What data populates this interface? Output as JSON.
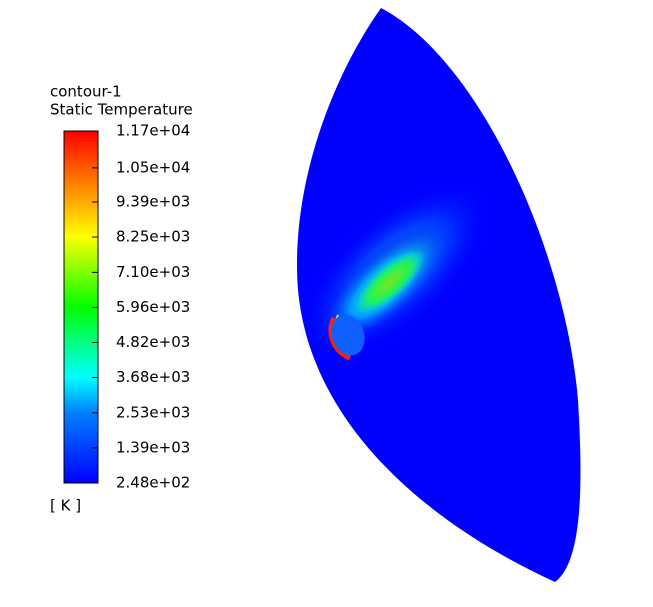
{
  "chart_data": {
    "type": "contour",
    "title": "contour-1",
    "subtitle": "Static Temperature",
    "unit": "[ K ]",
    "clim": [
      248,
      11700
    ],
    "cticks": [
      {
        "value": 248,
        "label": "2.48e+02"
      },
      {
        "value": 1390,
        "label": "1.39e+03"
      },
      {
        "value": 2530,
        "label": "2.53e+03"
      },
      {
        "value": 3680,
        "label": "3.68e+03"
      },
      {
        "value": 4820,
        "label": "4.82e+03"
      },
      {
        "value": 5960,
        "label": "5.96e+03"
      },
      {
        "value": 7100,
        "label": "7.10e+03"
      },
      {
        "value": 8250,
        "label": "8.25e+03"
      },
      {
        "value": 9390,
        "label": "9.39e+03"
      },
      {
        "value": 10500,
        "label": "1.05e+04"
      },
      {
        "value": 11700,
        "label": "1.17e+04"
      }
    ]
  }
}
